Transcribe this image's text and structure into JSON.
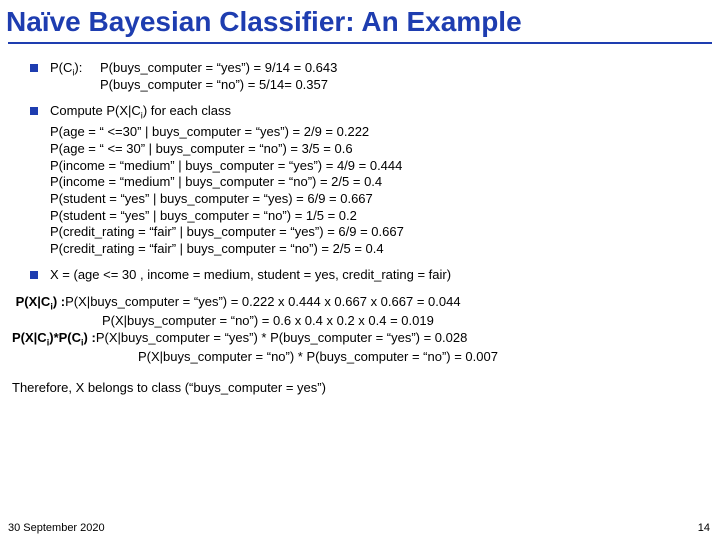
{
  "colors": {
    "title": "#1e3db0",
    "rule": "#1e3db0",
    "bullet": "#1e3db0"
  },
  "title": "Naïve Bayesian Classifier:  An Example",
  "s1": {
    "lead_html": "P(C<span class='sub'>i</span>): ",
    "l1": "P(buys_computer = “yes”)  = 9/14 = 0.643",
    "l2": "P(buys_computer = “no”) = 5/14= 0.357"
  },
  "s2": {
    "lead_html": "Compute P(X|C<span class='sub'>i</span>) for each class",
    "l1": "P(age = “ <=30” | buys_computer = “yes”)  = 2/9 = 0.222",
    "l2": "P(age = “ <= 30” | buys_computer = “no”) = 3/5 = 0.6",
    "l3": "P(income = “medium” | buys_computer = “yes”) = 4/9 = 0.444",
    "l4": "P(income = “medium” | buys_computer = “no”) = 2/5 = 0.4",
    "l5": "P(student = “yes” | buys_computer = “yes) = 6/9 = 0.667",
    "l6": "P(student = “yes” | buys_computer = “no”) = 1/5 = 0.2",
    "l7": "P(credit_rating = “fair” | buys_computer = “yes”) = 6/9 = 0.667",
    "l8": "P(credit_rating = “fair” | buys_computer = “no”) = 2/5 = 0.4"
  },
  "s3": {
    "lead": "X = (age <= 30 , income = medium, student = yes, credit_rating = fair)"
  },
  "pxci": {
    "label_html": "P(X|C<span class='sub'>i</span>) : ",
    "l1": "P(X|buys_computer = “yes”) = 0.222 x 0.444 x 0.667 x 0.667 = 0.044",
    "l2": "P(X|buys_computer = “no”) = 0.6 x 0.4 x 0.2 x 0.4 = 0.019"
  },
  "pxcipci": {
    "label_html": "P(X|C<span class='sub'>i</span>)*P(C<span class='sub'>i</span>) : ",
    "l1": "P(X|buys_computer = “yes”) * P(buys_computer = “yes”) = 0.028",
    "l2": "P(X|buys_computer = “no”) * P(buys_computer = “no”) = 0.007"
  },
  "conclusion": "Therefore,  X belongs to class (“buys_computer = yes”)",
  "footer": {
    "date": "30 September 2020",
    "page": "14"
  }
}
